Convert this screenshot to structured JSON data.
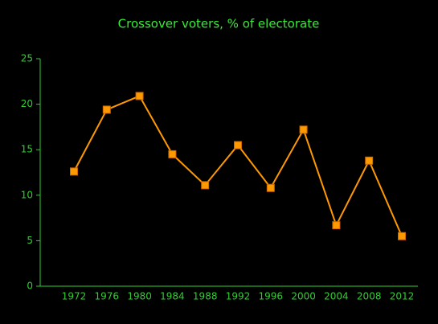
{
  "chart_data": {
    "type": "line",
    "title": "Crossover voters, % of electorate",
    "categories": [
      "1972",
      "1976",
      "1980",
      "1984",
      "1988",
      "1992",
      "1996",
      "2000",
      "2004",
      "2008",
      "2012"
    ],
    "series": [
      {
        "name": "Crossover voters",
        "color": "#ff9900",
        "values": [
          12.6,
          19.4,
          20.9,
          14.5,
          11.1,
          15.5,
          10.8,
          17.2,
          6.7,
          13.8,
          5.5
        ]
      }
    ],
    "ylim": [
      0,
      25
    ],
    "yticks": [
      0,
      5,
      10,
      15,
      20,
      25
    ],
    "axis_color": "#33cc33",
    "grid": false
  }
}
